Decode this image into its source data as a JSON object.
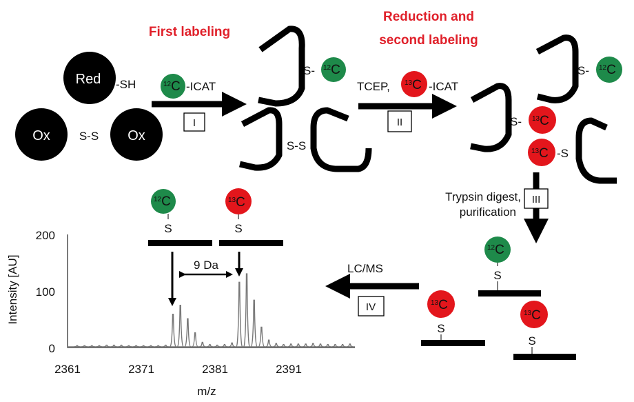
{
  "titles": {
    "first_labeling": "First labeling",
    "second_labeling_line1": "Reduction and",
    "second_labeling_line2": "second labeling"
  },
  "reagents": {
    "red_label": "Red",
    "sh": "-SH",
    "ox_label": "Ox",
    "ss": "S-S",
    "s": "S",
    "s_dash": "S-",
    "dash_s": "-S",
    "icat_suffix": "-ICAT",
    "tcep": "TCEP,",
    "isotope_12_mass": "12",
    "isotope_13_mass": "13",
    "isotope_element": "C"
  },
  "steps": {
    "step1": "I",
    "step2": "II",
    "step3": "III",
    "step4": "IV",
    "trypsin_line1": "Trypsin digest,",
    "trypsin_line2": "purification",
    "lcms": "LC/MS",
    "mass_diff": "9 Da"
  },
  "colors": {
    "light_label": "#1e8a4a",
    "heavy_label": "#e3161c",
    "title_red": "#e0202a"
  },
  "chart_data": {
    "type": "line",
    "title": "",
    "xlabel": "m/z",
    "ylabel": "Intensity [AU]",
    "xlim": [
      2361,
      2400
    ],
    "ylim": [
      0,
      200
    ],
    "xticks": [
      "2361",
      "2371",
      "2381",
      "2391"
    ],
    "yticks": [
      "0",
      "100",
      "200"
    ],
    "grid": false,
    "peaks": {
      "mz": [
        2362.3,
        2363.3,
        2364.3,
        2365.3,
        2366.3,
        2367.3,
        2368.3,
        2369.3,
        2370.3,
        2371.3,
        2372.3,
        2373.3,
        2374.3,
        2375.3,
        2376.3,
        2377.3,
        2378.3,
        2379.3,
        2380.3,
        2381.3,
        2382.3,
        2383.3,
        2384.3,
        2385.3,
        2386.3,
        2387.3,
        2388.3,
        2389.3,
        2390.3,
        2391.3,
        2392.3,
        2393.3,
        2394.3,
        2395.3,
        2396.3,
        2397.3,
        2398.3,
        2399.3
      ],
      "intensity": [
        2,
        2,
        2,
        2,
        3,
        3,
        3,
        2,
        2,
        2,
        2,
        2,
        3,
        58,
        74,
        50,
        25,
        8,
        4,
        3,
        4,
        7,
        115,
        130,
        83,
        35,
        12,
        6,
        4,
        5,
        5,
        5,
        6,
        5,
        4,
        4,
        4,
        5
      ]
    }
  }
}
